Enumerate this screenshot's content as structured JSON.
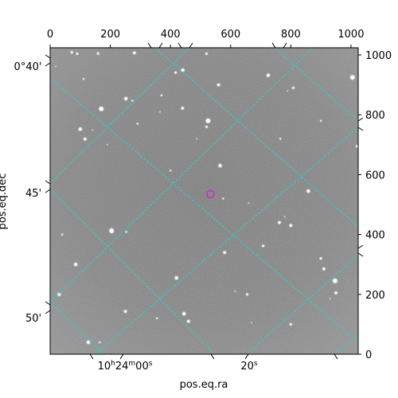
{
  "chart_data": {
    "type": "image",
    "xlabel": "pos.eq.ra",
    "ylabel": "pos.eq.dec",
    "pixel_x": {
      "ticks": [
        0,
        200,
        400,
        600,
        800,
        1000
      ],
      "range": [
        0,
        1024
      ]
    },
    "pixel_y": {
      "ticks": [
        0,
        200,
        400,
        600,
        800,
        1000
      ],
      "range": [
        0,
        1024
      ]
    },
    "ra_ticks": [
      "10h24m00s",
      "20s"
    ],
    "dec_ticks": [
      "0°40'",
      "45'",
      "50'"
    ],
    "grid": true,
    "colors": {
      "grid": "#22d3d3",
      "marker": "#d02bd0",
      "image_base": "#8c8c8c"
    },
    "stars": [
      [
        18,
        962
      ],
      [
        72,
        1009
      ],
      [
        100,
        752
      ],
      [
        111,
        920
      ],
      [
        116,
        719
      ],
      [
        141,
        749
      ],
      [
        159,
        1005
      ],
      [
        252,
        854
      ],
      [
        273,
        847
      ],
      [
        280,
        1007
      ],
      [
        365,
        810
      ],
      [
        417,
        941
      ],
      [
        441,
        949
      ],
      [
        400,
        614
      ],
      [
        440,
        822
      ],
      [
        487,
        720
      ],
      [
        520,
        760
      ],
      [
        565,
        630
      ],
      [
        575,
        520
      ],
      [
        580,
        340
      ],
      [
        660,
        505
      ],
      [
        708,
        362
      ],
      [
        725,
        932
      ],
      [
        765,
        720
      ],
      [
        762,
        440
      ],
      [
        789,
        880
      ],
      [
        808,
        890
      ],
      [
        858,
        545
      ],
      [
        900,
        780
      ],
      [
        910,
        285
      ],
      [
        1003,
        925
      ],
      [
        1020,
        695
      ],
      [
        205,
        411
      ],
      [
        253,
        409
      ],
      [
        250,
        143
      ],
      [
        190,
        700
      ],
      [
        90,
        1004
      ],
      [
        127,
        40
      ],
      [
        165,
        40
      ],
      [
        460,
        110
      ],
      [
        670,
        105
      ],
      [
        800,
        100
      ],
      [
        445,
        135
      ],
      [
        355,
        120
      ],
      [
        950,
        205
      ],
      [
        930,
        185
      ],
      [
        655,
        200
      ],
      [
        420,
        255
      ],
      [
        290,
        770
      ],
      [
        800,
        430
      ],
      [
        780,
        460
      ],
      [
        900,
        320
      ],
      [
        85,
        300
      ],
      [
        370,
        865
      ],
      [
        560,
        900
      ],
      [
        615,
        210
      ],
      [
        520,
        1004
      ],
      [
        30,
        200
      ],
      [
        40,
        400
      ]
    ],
    "marker": {
      "x": 533,
      "y": 535
    }
  }
}
